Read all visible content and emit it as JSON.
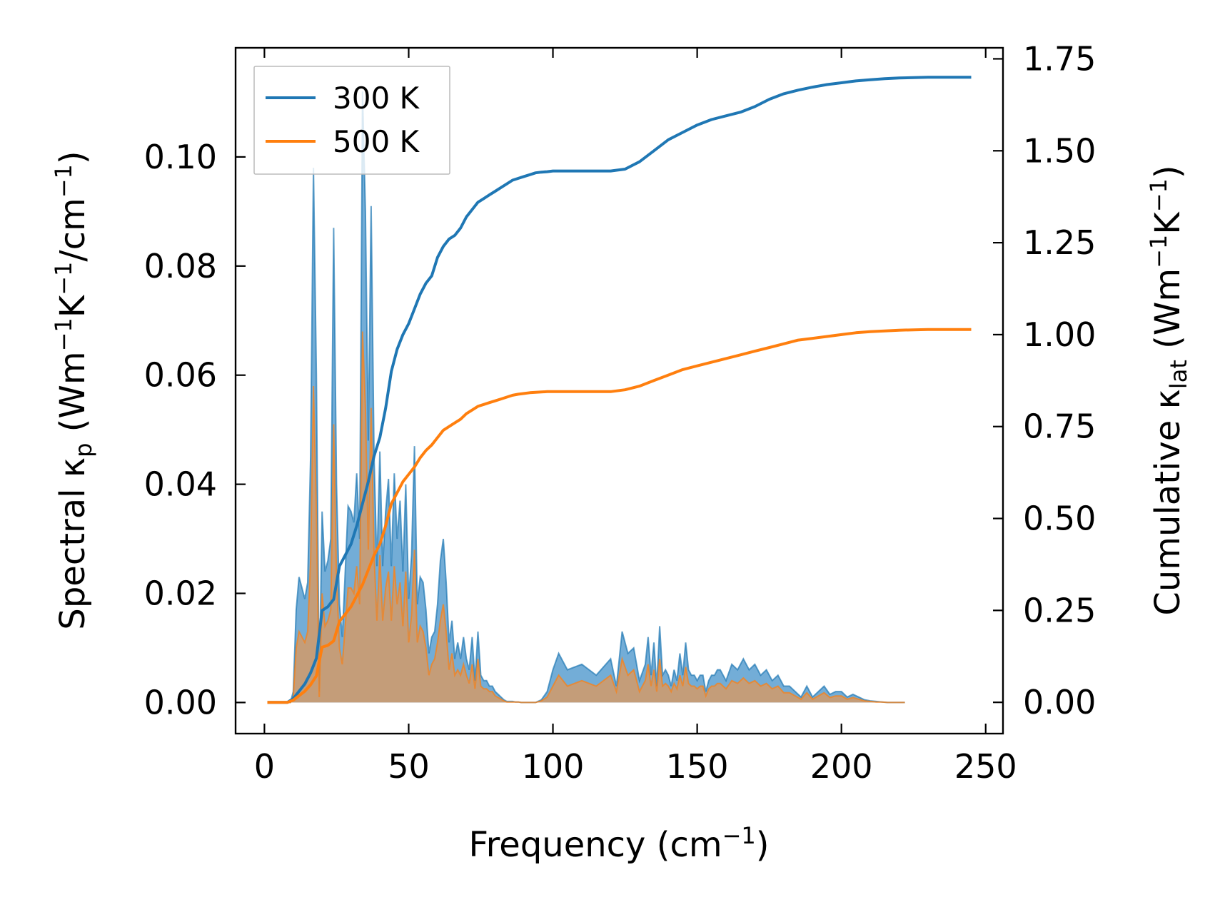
{
  "chart_data": {
    "type": "line",
    "title": "",
    "xlabel": {
      "main": "Frequency (cm",
      "sup": "−1",
      "end": ")"
    },
    "ylabel_left": {
      "pre": "Spectral κ",
      "sub": "p",
      "mid": " (Wm",
      "sup1": "−1",
      "k": "K",
      "sup2": "−1",
      "slash": "/cm",
      "sup3": "−1",
      "end": ")"
    },
    "ylabel_right": {
      "pre": "Cumulative κ",
      "sub": "lat",
      "mid": " (Wm",
      "sup1": "−1",
      "k": "K",
      "sup2": "−1",
      "end": ")"
    },
    "xlim": [
      -10,
      256
    ],
    "ylim_left": [
      -0.0057,
      0.12
    ],
    "ylim_right": [
      -0.085,
      1.78
    ],
    "x_ticks": [
      "0",
      "50",
      "100",
      "150",
      "200",
      "250"
    ],
    "x_tick_values": [
      0,
      50,
      100,
      150,
      200,
      250
    ],
    "y_left_ticks": [
      "0.00",
      "0.02",
      "0.04",
      "0.06",
      "0.08",
      "0.10"
    ],
    "y_left_tick_values": [
      0,
      0.02,
      0.04,
      0.06,
      0.08,
      0.1
    ],
    "y_right_ticks": [
      "0.00",
      "0.25",
      "0.50",
      "0.75",
      "1.00",
      "1.25",
      "1.50",
      "1.75"
    ],
    "y_right_tick_values": [
      0,
      0.25,
      0.5,
      0.75,
      1.0,
      1.25,
      1.5,
      1.75
    ],
    "legend": {
      "position": "top-left",
      "entries": [
        "300 K",
        "500 K"
      ]
    },
    "grid": false,
    "colors": {
      "s300": "#1f77b4",
      "s500": "#ff7f0e",
      "fill300": "#5a9fd0",
      "fill500": "#c89c74"
    },
    "spectral_x": [
      1,
      3,
      5,
      7,
      9,
      10,
      11,
      12,
      13,
      14,
      15,
      16,
      17,
      18,
      19,
      20,
      21,
      22,
      23,
      24,
      25,
      26,
      27,
      28,
      29,
      30,
      31,
      32,
      33,
      34,
      35,
      36,
      37,
      38,
      39,
      40,
      41,
      42,
      43,
      44,
      45,
      46,
      47,
      48,
      49,
      50,
      51,
      52,
      53,
      54,
      55,
      56,
      57,
      58,
      59,
      60,
      61,
      62,
      63,
      64,
      65,
      66,
      67,
      68,
      69,
      70,
      71,
      72,
      73,
      74,
      75,
      76,
      77,
      78,
      79,
      80,
      81,
      82,
      83,
      84,
      85,
      86,
      87,
      88,
      89,
      90,
      92,
      94,
      96,
      98,
      100,
      102,
      105,
      110,
      115,
      120,
      122,
      124,
      126,
      128,
      130,
      132,
      133,
      134,
      135,
      136,
      137,
      138,
      139,
      140,
      141,
      142,
      143,
      144,
      145,
      146,
      147,
      148,
      149,
      150,
      151,
      152,
      153,
      154,
      155,
      156,
      157,
      158,
      160,
      162,
      164,
      166,
      168,
      170,
      172,
      174,
      176,
      178,
      180,
      182,
      184,
      186,
      188,
      190,
      192,
      194,
      196,
      198,
      200,
      202,
      204,
      206,
      208,
      210,
      212,
      214,
      216,
      218,
      220,
      222,
      224,
      226,
      228,
      230,
      235,
      240,
      245
    ],
    "spectral_300": [
      0,
      0,
      0,
      0,
      0,
      0.002,
      0.017,
      0.023,
      0.021,
      0.019,
      0.022,
      0.045,
      0.098,
      0.06,
      0.002,
      0.035,
      0.024,
      0.026,
      0.03,
      0.087,
      0.04,
      0.018,
      0.012,
      0.024,
      0.036,
      0.035,
      0.033,
      0.042,
      0.03,
      0.112,
      0.09,
      0.048,
      0.091,
      0.045,
      0.025,
      0.046,
      0.025,
      0.035,
      0.041,
      0.025,
      0.042,
      0.03,
      0.037,
      0.024,
      0.04,
      0.019,
      0.027,
      0.047,
      0.018,
      0.023,
      0.022,
      0.017,
      0.009,
      0.012,
      0.013,
      0.018,
      0.026,
      0.03,
      0.022,
      0.011,
      0.015,
      0.008,
      0.011,
      0.008,
      0.012,
      0.008,
      0.006,
      0.012,
      0.004,
      0.013,
      0.005,
      0.004,
      0.004,
      0.003,
      0.003,
      0.002,
      0.0015,
      0.001,
      0.0005,
      0.0002,
      0.0002,
      0.0002,
      0.0001,
      0.0001,
      0,
      0,
      0,
      0,
      0.0005,
      0.002,
      0.006,
      0.009,
      0.006,
      0.007,
      0.005,
      0.008,
      0.003,
      0.013,
      0.009,
      0.01,
      0.004,
      0.007,
      0.012,
      0.005,
      0.011,
      0.003,
      0.014,
      0.005,
      0.006,
      0.005,
      0.003,
      0.006,
      0.004,
      0.009,
      0.005,
      0.011,
      0.006,
      0.005,
      0.005,
      0.004,
      0.005,
      0.005,
      0.002,
      0.004,
      0.005,
      0.005,
      0.006,
      0.006,
      0.004,
      0.007,
      0.006,
      0.008,
      0.006,
      0.007,
      0.005,
      0.006,
      0.004,
      0.005,
      0.003,
      0.003,
      0.002,
      0.001,
      0.003,
      0.001,
      0.002,
      0.003,
      0.0015,
      0.002,
      0.002,
      0.001,
      0.0015,
      0.001,
      0.0005,
      0.0003,
      0.0002,
      0.0001,
      0,
      0,
      0,
      0
    ],
    "spectral_500": [
      0,
      0,
      0,
      0,
      0,
      0.001,
      0.01,
      0.013,
      0.012,
      0.011,
      0.013,
      0.026,
      0.058,
      0.035,
      0.001,
      0.02,
      0.014,
      0.015,
      0.017,
      0.051,
      0.023,
      0.01,
      0.007,
      0.014,
      0.021,
      0.021,
      0.02,
      0.025,
      0.018,
      0.068,
      0.054,
      0.028,
      0.054,
      0.027,
      0.015,
      0.027,
      0.015,
      0.021,
      0.024,
      0.015,
      0.025,
      0.018,
      0.022,
      0.014,
      0.024,
      0.011,
      0.016,
      0.028,
      0.011,
      0.014,
      0.013,
      0.01,
      0.005,
      0.007,
      0.008,
      0.011,
      0.015,
      0.018,
      0.013,
      0.006,
      0.009,
      0.005,
      0.006,
      0.005,
      0.007,
      0.005,
      0.0035,
      0.007,
      0.0025,
      0.008,
      0.003,
      0.0025,
      0.0025,
      0.002,
      0.002,
      0.0012,
      0.0009,
      0.0006,
      0.0003,
      0.0001,
      0.0001,
      0.0001,
      0.0001,
      0.0001,
      0,
      0,
      0,
      0,
      0.0003,
      0.001,
      0.003,
      0.005,
      0.003,
      0.004,
      0.003,
      0.005,
      0.002,
      0.008,
      0.005,
      0.006,
      0.002,
      0.004,
      0.007,
      0.003,
      0.006,
      0.002,
      0.008,
      0.003,
      0.0035,
      0.003,
      0.002,
      0.0035,
      0.0025,
      0.005,
      0.003,
      0.0065,
      0.0035,
      0.003,
      0.003,
      0.0025,
      0.003,
      0.003,
      0.0012,
      0.0025,
      0.003,
      0.003,
      0.0035,
      0.0035,
      0.0025,
      0.004,
      0.0035,
      0.0045,
      0.0035,
      0.004,
      0.003,
      0.0035,
      0.0025,
      0.003,
      0.0018,
      0.0018,
      0.0012,
      0.0006,
      0.0018,
      0.0006,
      0.0012,
      0.0018,
      0.0009,
      0.0012,
      0.0012,
      0.0006,
      0.0009,
      0.0006,
      0.0003,
      0.0002,
      0.0001,
      0.0001,
      0,
      0,
      0,
      0
    ],
    "cumulative_x": [
      1,
      5,
      8,
      10,
      12,
      14,
      16,
      18,
      20,
      22,
      24,
      26,
      28,
      30,
      32,
      34,
      36,
      38,
      40,
      42,
      44,
      46,
      48,
      50,
      52,
      54,
      56,
      58,
      60,
      62,
      64,
      66,
      68,
      70,
      72,
      74,
      76,
      78,
      80,
      82,
      84,
      86,
      88,
      90,
      92,
      94,
      96,
      98,
      100,
      105,
      110,
      115,
      120,
      125,
      130,
      135,
      140,
      145,
      150,
      155,
      160,
      165,
      170,
      175,
      180,
      185,
      190,
      195,
      200,
      205,
      210,
      215,
      220,
      225,
      230,
      235,
      240,
      245
    ],
    "cumulative_300": [
      0,
      0,
      0,
      0.01,
      0.03,
      0.05,
      0.08,
      0.12,
      0.25,
      0.26,
      0.28,
      0.37,
      0.4,
      0.43,
      0.48,
      0.54,
      0.6,
      0.67,
      0.72,
      0.8,
      0.9,
      0.96,
      1.0,
      1.03,
      1.07,
      1.11,
      1.14,
      1.16,
      1.21,
      1.24,
      1.26,
      1.27,
      1.29,
      1.32,
      1.34,
      1.36,
      1.37,
      1.38,
      1.39,
      1.4,
      1.41,
      1.42,
      1.425,
      1.43,
      1.435,
      1.44,
      1.442,
      1.443,
      1.445,
      1.445,
      1.445,
      1.445,
      1.445,
      1.45,
      1.47,
      1.5,
      1.53,
      1.55,
      1.57,
      1.585,
      1.595,
      1.605,
      1.62,
      1.64,
      1.655,
      1.665,
      1.673,
      1.68,
      1.685,
      1.69,
      1.693,
      1.696,
      1.698,
      1.699,
      1.7,
      1.7,
      1.7,
      1.7
    ],
    "cumulative_500": [
      0,
      0,
      0,
      0.006,
      0.018,
      0.03,
      0.048,
      0.072,
      0.15,
      0.155,
      0.167,
      0.22,
      0.24,
      0.26,
      0.29,
      0.32,
      0.36,
      0.4,
      0.43,
      0.48,
      0.54,
      0.57,
      0.6,
      0.62,
      0.64,
      0.665,
      0.685,
      0.7,
      0.72,
      0.74,
      0.75,
      0.76,
      0.77,
      0.785,
      0.795,
      0.805,
      0.81,
      0.815,
      0.82,
      0.825,
      0.83,
      0.835,
      0.838,
      0.84,
      0.842,
      0.843,
      0.844,
      0.845,
      0.845,
      0.845,
      0.845,
      0.845,
      0.845,
      0.85,
      0.86,
      0.875,
      0.89,
      0.905,
      0.915,
      0.925,
      0.935,
      0.945,
      0.955,
      0.965,
      0.975,
      0.985,
      0.99,
      0.995,
      1.0,
      1.005,
      1.008,
      1.01,
      1.012,
      1.013,
      1.014,
      1.014,
      1.014,
      1.014
    ]
  }
}
